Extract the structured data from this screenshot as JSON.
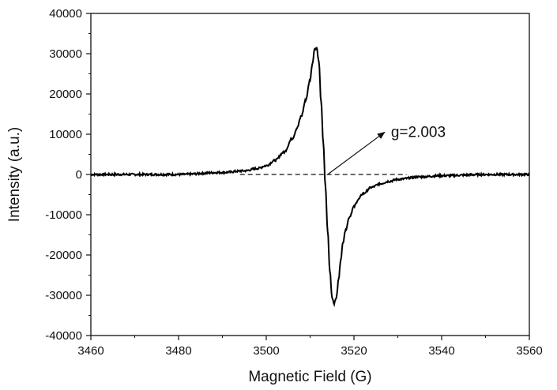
{
  "chart_data": {
    "type": "line",
    "title": "",
    "xlabel": "Magnetic Field (G)",
    "ylabel": "Intensity (a.u.)",
    "xlim": [
      3460,
      3560
    ],
    "ylim": [
      -40000,
      40000
    ],
    "x_ticks": [
      3460,
      3480,
      3500,
      3520,
      3540,
      3560
    ],
    "y_ticks": [
      -40000,
      -30000,
      -20000,
      -10000,
      0,
      10000,
      20000,
      30000,
      40000
    ],
    "x_tick_labels": [
      "3460",
      "3480",
      "3500",
      "3520",
      "3540",
      "3560"
    ],
    "y_tick_labels": [
      "-40000",
      "-30000",
      "-20000",
      "-10000",
      "0",
      "10000",
      "20000",
      "30000",
      "40000"
    ],
    "grid": false,
    "legend": "none",
    "series": [
      {
        "x": [
          3460,
          3470,
          3480,
          3490,
          3495,
          3498,
          3500,
          3502,
          3504,
          3506,
          3507,
          3508,
          3509,
          3510,
          3510.5,
          3511,
          3511.5,
          3512,
          3512.5,
          3513,
          3513.5,
          3514,
          3514.5,
          3515,
          3515.5,
          3516,
          3516.5,
          3517,
          3517.5,
          3518,
          3519,
          3520,
          3521,
          3522,
          3524,
          3526,
          3528,
          3530,
          3535,
          3540,
          3550,
          3560
        ],
        "y": [
          0,
          0,
          0,
          500,
          900,
          1500,
          2200,
          3500,
          5500,
          9000,
          11500,
          14500,
          18500,
          23500,
          27500,
          31000,
          31500,
          28000,
          18000,
          8000,
          -3000,
          -14000,
          -24000,
          -30500,
          -32000,
          -30500,
          -26000,
          -21000,
          -17000,
          -14000,
          -10500,
          -8000,
          -6200,
          -4800,
          -3200,
          -2300,
          -1700,
          -1200,
          -600,
          -300,
          0,
          0
        ],
        "color": "#000000"
      }
    ],
    "reference_line": {
      "y": 0,
      "style": "dashed",
      "x_range": [
        3494,
        3532
      ]
    },
    "annotation": {
      "text": "g=2.003",
      "arrow_from": [
        3514,
        0
      ],
      "arrow_to": [
        3527,
        10500
      ]
    }
  }
}
